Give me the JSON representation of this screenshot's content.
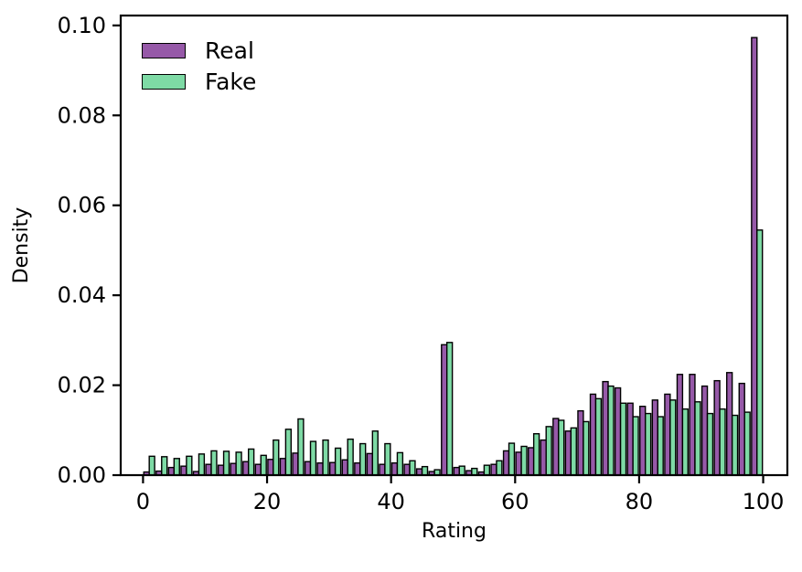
{
  "figure": {
    "background": "#ffffff",
    "text_color": "#000000",
    "axis_color": "#000000"
  },
  "legend": {
    "position": "upper-left",
    "items": [
      {
        "label": "Real",
        "color": "#9659a8"
      },
      {
        "label": "Fake",
        "color": "#7edaa5"
      }
    ]
  },
  "chart_data": {
    "type": "bar",
    "subtype": "dodged-density-histogram",
    "title": "",
    "xlabel": "Rating",
    "ylabel": "Density",
    "xlim": [
      -3.6,
      103.9
    ],
    "ylim": [
      0,
      0.1022
    ],
    "x_ticks": [
      0,
      20,
      40,
      60,
      80,
      100
    ],
    "x_tick_labels": [
      "0",
      "20",
      "40",
      "60",
      "80",
      "100"
    ],
    "y_ticks": [
      0,
      0.02,
      0.04,
      0.06,
      0.08,
      0.1
    ],
    "y_tick_labels": [
      "0.00",
      "0.02",
      "0.04",
      "0.06",
      "0.08",
      "0.10"
    ],
    "grid": false,
    "legend_position": "upper-left",
    "bin_width": 2,
    "bar_width": 0.875,
    "edge_color": "#000000",
    "bin_centers": [
      1,
      3,
      5,
      7,
      9,
      11,
      13,
      15,
      17,
      19,
      21,
      23,
      25,
      27,
      29,
      31,
      33,
      35,
      37,
      39,
      41,
      43,
      45,
      47,
      49,
      51,
      53,
      55,
      57,
      59,
      61,
      63,
      65,
      67,
      69,
      71,
      73,
      75,
      77,
      79,
      81,
      83,
      85,
      87,
      89,
      91,
      93,
      95,
      97,
      99
    ],
    "series": [
      {
        "name": "Real",
        "color": "#9659a8",
        "values": [
          0.0007,
          0.0009,
          0.0017,
          0.002,
          0.0008,
          0.0024,
          0.0022,
          0.0026,
          0.003,
          0.0024,
          0.0035,
          0.0037,
          0.0049,
          0.003,
          0.0027,
          0.0028,
          0.0034,
          0.0027,
          0.0048,
          0.0024,
          0.0027,
          0.0024,
          0.0014,
          0.0008,
          0.029,
          0.0017,
          0.001,
          0.0007,
          0.0024,
          0.0054,
          0.0051,
          0.0061,
          0.0078,
          0.0126,
          0.0098,
          0.0143,
          0.018,
          0.0208,
          0.0194,
          0.016,
          0.0153,
          0.0167,
          0.018,
          0.0224,
          0.0224,
          0.0198,
          0.021,
          0.0228,
          0.0204,
          0.0973
        ]
      },
      {
        "name": "Fake",
        "color": "#7edaa5",
        "values": [
          0.0042,
          0.0041,
          0.0037,
          0.0042,
          0.0047,
          0.0054,
          0.0053,
          0.0051,
          0.0058,
          0.0044,
          0.0078,
          0.0102,
          0.0125,
          0.0075,
          0.0078,
          0.006,
          0.008,
          0.007,
          0.0098,
          0.007,
          0.005,
          0.0032,
          0.0019,
          0.0012,
          0.0295,
          0.002,
          0.0015,
          0.0022,
          0.0032,
          0.0071,
          0.0064,
          0.0092,
          0.0108,
          0.0122,
          0.0105,
          0.0119,
          0.017,
          0.0198,
          0.016,
          0.013,
          0.0137,
          0.013,
          0.0167,
          0.0147,
          0.0163,
          0.0137,
          0.0147,
          0.0133,
          0.014,
          0.0545
        ]
      }
    ]
  }
}
